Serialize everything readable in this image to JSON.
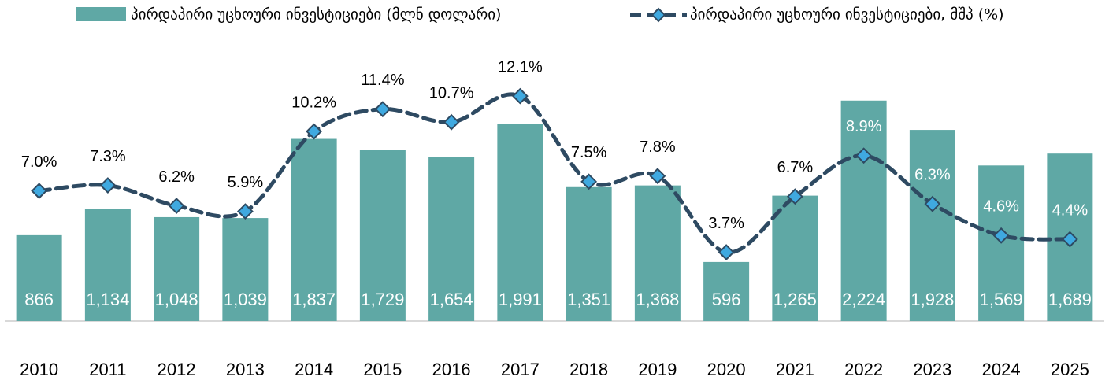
{
  "chart_data": {
    "type": "bar_line",
    "categories": [
      "2010",
      "2011",
      "2012",
      "2013",
      "2014",
      "2015",
      "2016",
      "2017",
      "2018",
      "2019",
      "2020",
      "2021",
      "2022",
      "2023",
      "2024",
      "2025"
    ],
    "series": [
      {
        "name": "პირდაპირი უცხოური ინვესტიციები (მლნ დოლარი)",
        "type": "bar",
        "color": "#5fa8a5",
        "values": [
          866,
          1134,
          1048,
          1039,
          1837,
          1729,
          1654,
          1991,
          1351,
          1368,
          596,
          1265,
          2224,
          1928,
          1569,
          1689
        ],
        "value_labels": [
          "866",
          "1,134",
          "1,048",
          "1,039",
          "1,837",
          "1,729",
          "1,654",
          "1,991",
          "1,351",
          "1,368",
          "596",
          "1,265",
          "2,224",
          "1,928",
          "1,569",
          "1,689"
        ]
      },
      {
        "name": "პირდაპირი უცხოური ინვესტიციები, მშპ (%)",
        "type": "line",
        "axis": "y2",
        "color": "#2e4a62",
        "marker_color": "#3fa9e0",
        "values": [
          7.0,
          7.3,
          6.2,
          5.9,
          10.2,
          11.4,
          10.7,
          12.1,
          7.5,
          7.8,
          3.7,
          6.7,
          8.9,
          6.3,
          4.6,
          4.4
        ],
        "value_labels": [
          "7.0%",
          "7.3%",
          "6.2%",
          "5.9%",
          "10.2%",
          "11.4%",
          "10.7%",
          "12.1%",
          "7.5%",
          "7.8%",
          "3.7%",
          "6.7%",
          "8.9%",
          "6.3%",
          "4.6%",
          "4.4%"
        ]
      }
    ],
    "ylim": [
      0,
      3000
    ],
    "y2lim": [
      0,
      16
    ],
    "legend": "top"
  }
}
